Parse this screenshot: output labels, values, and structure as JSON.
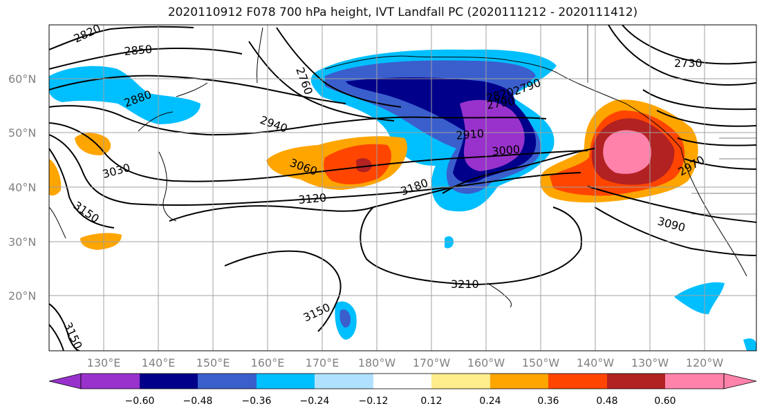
{
  "title": "2020110912 F078 700 hPa height, IVT Landfall PC (2020111212 - 2020111412)",
  "lat_labels": [
    "60°N",
    "50°N",
    "40°N",
    "30°N",
    "20°N"
  ],
  "lon_labels": [
    "130°E",
    "140°E",
    "150°E",
    "160°E",
    "170°E",
    "180°W",
    "170°W",
    "160°W",
    "150°W",
    "140°W",
    "130°W",
    "120°W"
  ],
  "contour_labels": [
    "2820",
    "2850",
    "2880",
    "2940",
    "3030",
    "3060",
    "3120",
    "3150",
    "3180",
    "3210",
    "3150",
    "3150",
    "2760",
    "2790",
    "2790",
    "2820",
    "2910",
    "3000",
    "2730",
    "3090",
    "2970"
  ],
  "colorbar": {
    "ticks": [
      "−0.60",
      "−0.48",
      "−0.36",
      "−0.24",
      "−0.12",
      "0.12",
      "0.24",
      "0.36",
      "0.48",
      "0.60"
    ],
    "colors": [
      "#9932CC",
      "#00008B",
      "#3A5FCD",
      "#00BFFF",
      "#B0E2FF",
      "#FFFFFF",
      "#FFEC8B",
      "#FFA500",
      "#FF4500",
      "#B22222",
      "#FF82AB"
    ]
  },
  "shading_colors": {
    "deep_purple": "#9932CC",
    "navy": "#00008B",
    "royal_blue": "#3A5FCD",
    "sky_blue": "#00BFFF",
    "orange": "#FFA500",
    "red_orange": "#FF4500",
    "dark_red": "#B22222",
    "pink": "#FF82AB"
  }
}
